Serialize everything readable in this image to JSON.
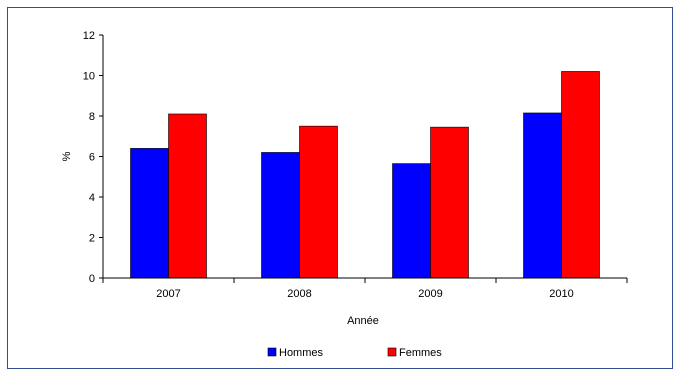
{
  "chart_data": {
    "type": "bar",
    "categories": [
      "2007",
      "2008",
      "2009",
      "2010"
    ],
    "series": [
      {
        "name": "Hommes",
        "color": "#0000ff",
        "values": [
          6.4,
          6.2,
          5.65,
          8.15
        ]
      },
      {
        "name": "Femmes",
        "color": "#ff0000",
        "values": [
          8.1,
          7.5,
          7.45,
          10.2
        ]
      }
    ],
    "xlabel": "Année",
    "ylabel": "%",
    "ylim": [
      0,
      12
    ],
    "yticks": [
      0,
      2,
      4,
      6,
      8,
      10,
      12
    ],
    "grid": false,
    "legend_position": "bottom"
  }
}
